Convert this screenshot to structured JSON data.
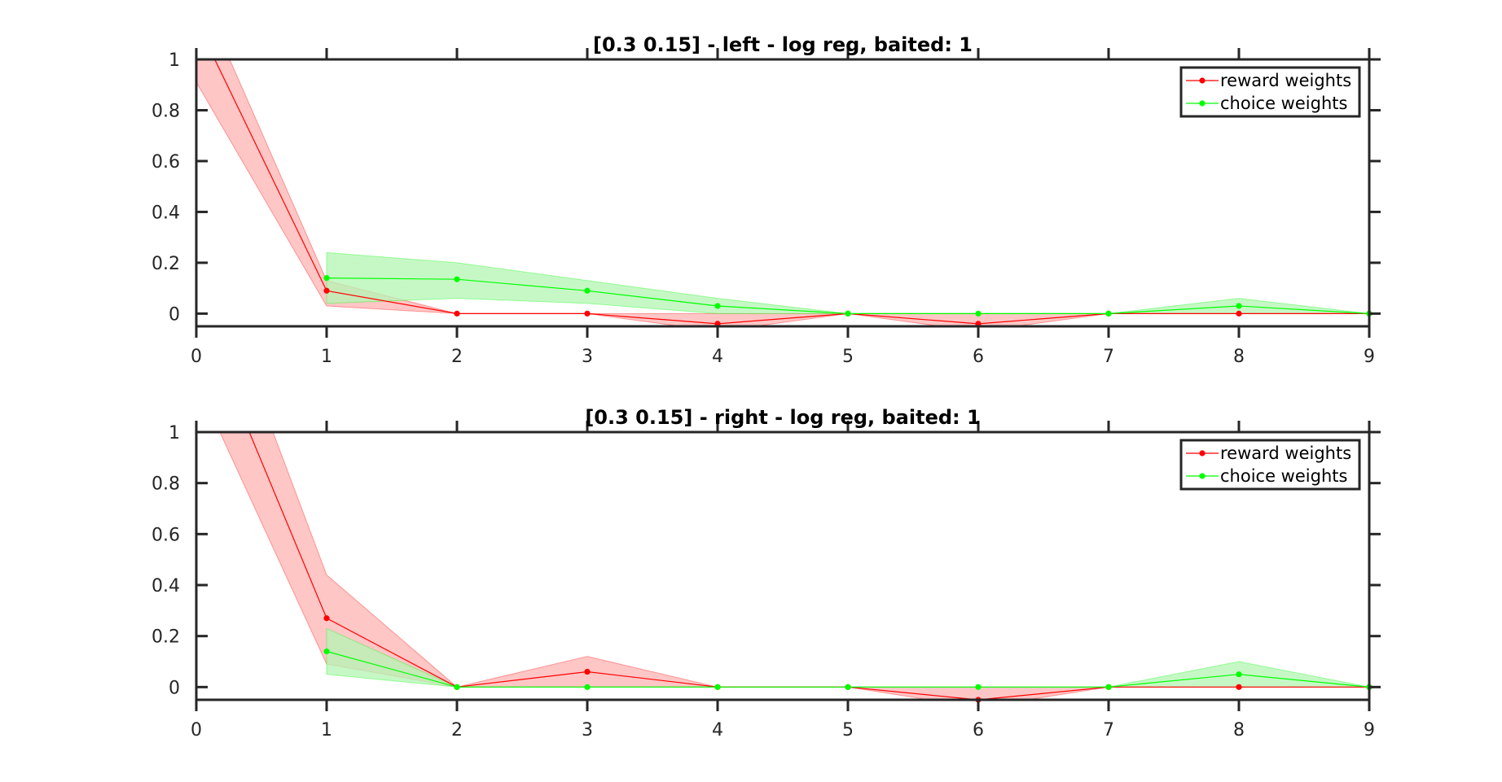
{
  "chart_data": [
    {
      "type": "line",
      "title": "[0.3 0.15] - left - log reg, baited: 1",
      "xlabel": "",
      "ylabel": "",
      "xlim": [
        0,
        9
      ],
      "ylim": [
        -0.05,
        1
      ],
      "x_ticks": [
        "0",
        "1",
        "2",
        "3",
        "4",
        "5",
        "6",
        "7",
        "8",
        "9"
      ],
      "y_ticks": [
        "0",
        "0.2",
        "0.4",
        "0.6",
        "0.8",
        "1"
      ],
      "grid": false,
      "legend_position": "top-right",
      "x": [
        0,
        1,
        2,
        3,
        4,
        5,
        6,
        7,
        8,
        9
      ],
      "series": [
        {
          "name": "reward weights",
          "color": "#ff0000",
          "band_color": "#ffb3b3",
          "values": [
            1.15,
            0.09,
            0.0,
            0.0,
            -0.04,
            0.0,
            -0.04,
            0.0,
            0.0,
            0.0
          ],
          "lower": [
            0.91,
            0.03,
            0.0,
            0.0,
            -0.07,
            0.0,
            -0.07,
            0.0,
            0.0,
            0.0
          ],
          "upper": [
            1.3,
            0.13,
            0.0,
            0.0,
            0.0,
            0.0,
            0.0,
            0.0,
            0.0,
            0.0
          ]
        },
        {
          "name": "choice weights",
          "color": "#00ff00",
          "band_color": "#b3f5b3",
          "values": [
            null,
            0.14,
            0.135,
            0.09,
            0.03,
            0.0,
            0.0,
            0.0,
            0.03,
            0.0
          ],
          "lower": [
            null,
            0.04,
            0.06,
            0.04,
            0.0,
            0.0,
            0.0,
            0.0,
            0.0,
            0.0
          ],
          "upper": [
            null,
            0.24,
            0.2,
            0.13,
            0.06,
            0.0,
            0.0,
            0.0,
            0.06,
            0.0
          ]
        }
      ]
    },
    {
      "type": "line",
      "title": "[0.3 0.15] - right - log reg, baited: 1",
      "xlabel": "",
      "ylabel": "",
      "xlim": [
        0,
        9
      ],
      "ylim": [
        -0.05,
        1
      ],
      "x_ticks": [
        "0",
        "1",
        "2",
        "3",
        "4",
        "5",
        "6",
        "7",
        "8",
        "9"
      ],
      "y_ticks": [
        "0",
        "0.2",
        "0.4",
        "0.6",
        "0.8",
        "1"
      ],
      "grid": false,
      "legend_position": "top-right",
      "x": [
        0,
        1,
        2,
        3,
        4,
        5,
        6,
        7,
        8,
        9
      ],
      "series": [
        {
          "name": "reward weights",
          "color": "#ff0000",
          "band_color": "#ffb3b3",
          "values": [
            1.5,
            0.27,
            0.0,
            0.06,
            0.0,
            0.0,
            -0.05,
            0.0,
            0.0,
            0.0
          ],
          "lower": [
            1.2,
            0.09,
            0.0,
            0.0,
            0.0,
            0.0,
            -0.08,
            0.0,
            0.0,
            0.0
          ],
          "upper": [
            1.8,
            0.44,
            0.0,
            0.12,
            0.0,
            0.0,
            0.0,
            0.0,
            0.0,
            0.0
          ]
        },
        {
          "name": "choice weights",
          "color": "#00ff00",
          "band_color": "#b3f5b3",
          "values": [
            null,
            0.14,
            0.0,
            0.0,
            0.0,
            0.0,
            0.0,
            0.0,
            0.05,
            0.0
          ],
          "lower": [
            null,
            0.05,
            0.0,
            0.0,
            0.0,
            0.0,
            0.0,
            0.0,
            0.0,
            0.0
          ],
          "upper": [
            null,
            0.23,
            0.0,
            0.0,
            0.0,
            0.0,
            0.0,
            0.0,
            0.1,
            0.0
          ]
        }
      ]
    }
  ]
}
